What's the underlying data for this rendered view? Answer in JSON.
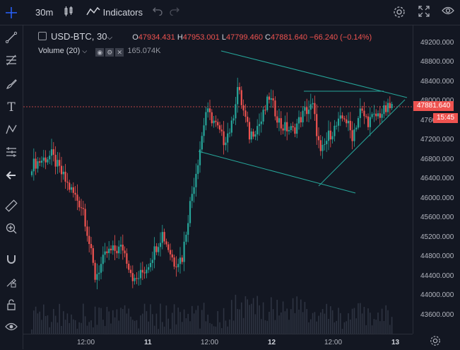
{
  "toolbar": {
    "interval": "30m",
    "indicators_label": "Indicators"
  },
  "legend": {
    "symbol": "USD-BTC",
    "interval": "30",
    "open_label": "O",
    "open": "47934.431",
    "high_label": "H",
    "high": "47953.001",
    "low_label": "L",
    "low": "47799.460",
    "close_label": "C",
    "close": "47881.640",
    "change": "−66.240 (−0.14%)"
  },
  "volume_legend": {
    "label": "Volume (20)",
    "value": "165.074K"
  },
  "price_axis": {
    "labels": [
      "49200.000",
      "48800.000",
      "48400.000",
      "48000.000",
      "47600.000",
      "47200.000",
      "46800.000",
      "46400.000",
      "46000.000",
      "45600.000",
      "45200.000",
      "44800.000",
      "44400.000",
      "44000.000",
      "43600.000"
    ],
    "current_price": "47881.640",
    "countdown": "15:45"
  },
  "time_axis": {
    "labels": [
      "12:00",
      "11",
      "12:00",
      "12",
      "12:00",
      "13"
    ]
  },
  "colors": {
    "up": "#26a69a",
    "down": "#ef5350",
    "trendline": "#26a69a",
    "background": "#131722"
  },
  "icons": {
    "sidebar": [
      "crosshair-icon",
      "trendline-icon",
      "fib-icon",
      "brush-icon",
      "text-icon",
      "pattern-icon",
      "ruler-icon",
      "back-arrow-icon",
      "measure-icon",
      "zoom-in-icon",
      "magnet-icon",
      "lock-draw-icon",
      "lock-icon",
      "eye-icon"
    ],
    "top": [
      "candles-icon",
      "indicators-icon",
      "undo-icon",
      "redo-icon",
      "settings-icon",
      "fullscreen-icon",
      "snapshot-icon"
    ]
  }
}
